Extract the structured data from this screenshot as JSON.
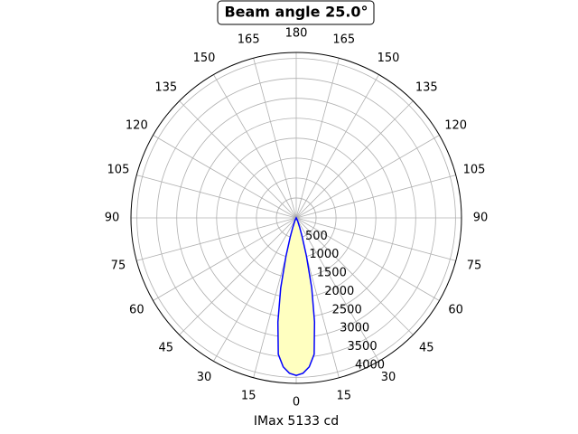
{
  "chart_data": {
    "type": "polar",
    "title": "Beam angle 25.0°",
    "xlabel": "IMax 5133 cd",
    "ylim": [
      0,
      4150
    ],
    "yticks": [
      500,
      1000,
      1500,
      2000,
      2500,
      3000,
      3500,
      4000
    ],
    "thetaticks": [
      0,
      15,
      30,
      45,
      60,
      75,
      90,
      105,
      120,
      135,
      150,
      165,
      180,
      {
        "value": 195,
        "label": "165"
      },
      {
        "value": 210,
        "label": "150"
      },
      {
        "value": 225,
        "label": "135"
      },
      {
        "value": 240,
        "label": "120"
      },
      {
        "value": 255,
        "label": "105"
      },
      {
        "value": 270,
        "label": "90"
      },
      {
        "value": 285,
        "label": "75"
      },
      {
        "value": 300,
        "label": "60"
      },
      {
        "value": 315,
        "label": "45"
      },
      {
        "value": 330,
        "label": "30"
      },
      {
        "value": 345,
        "label": "15"
      }
    ],
    "grid": true,
    "series": [
      {
        "color": "#0000ff",
        "fill": "#ffffc0",
        "x": [
          -30,
          -25,
          -20,
          -17.5,
          -15,
          -12.5,
          -10,
          -7.5,
          -5,
          -2.5,
          0,
          2.5,
          5,
          7.5,
          10,
          12.5,
          15,
          17.5,
          20,
          25,
          30
        ],
        "values": [
          0,
          80,
          250,
          500,
          1000,
          1800,
          2650,
          3450,
          3750,
          3900,
          3950,
          3900,
          3750,
          3450,
          2650,
          1800,
          1000,
          500,
          250,
          80,
          0
        ]
      }
    ]
  }
}
